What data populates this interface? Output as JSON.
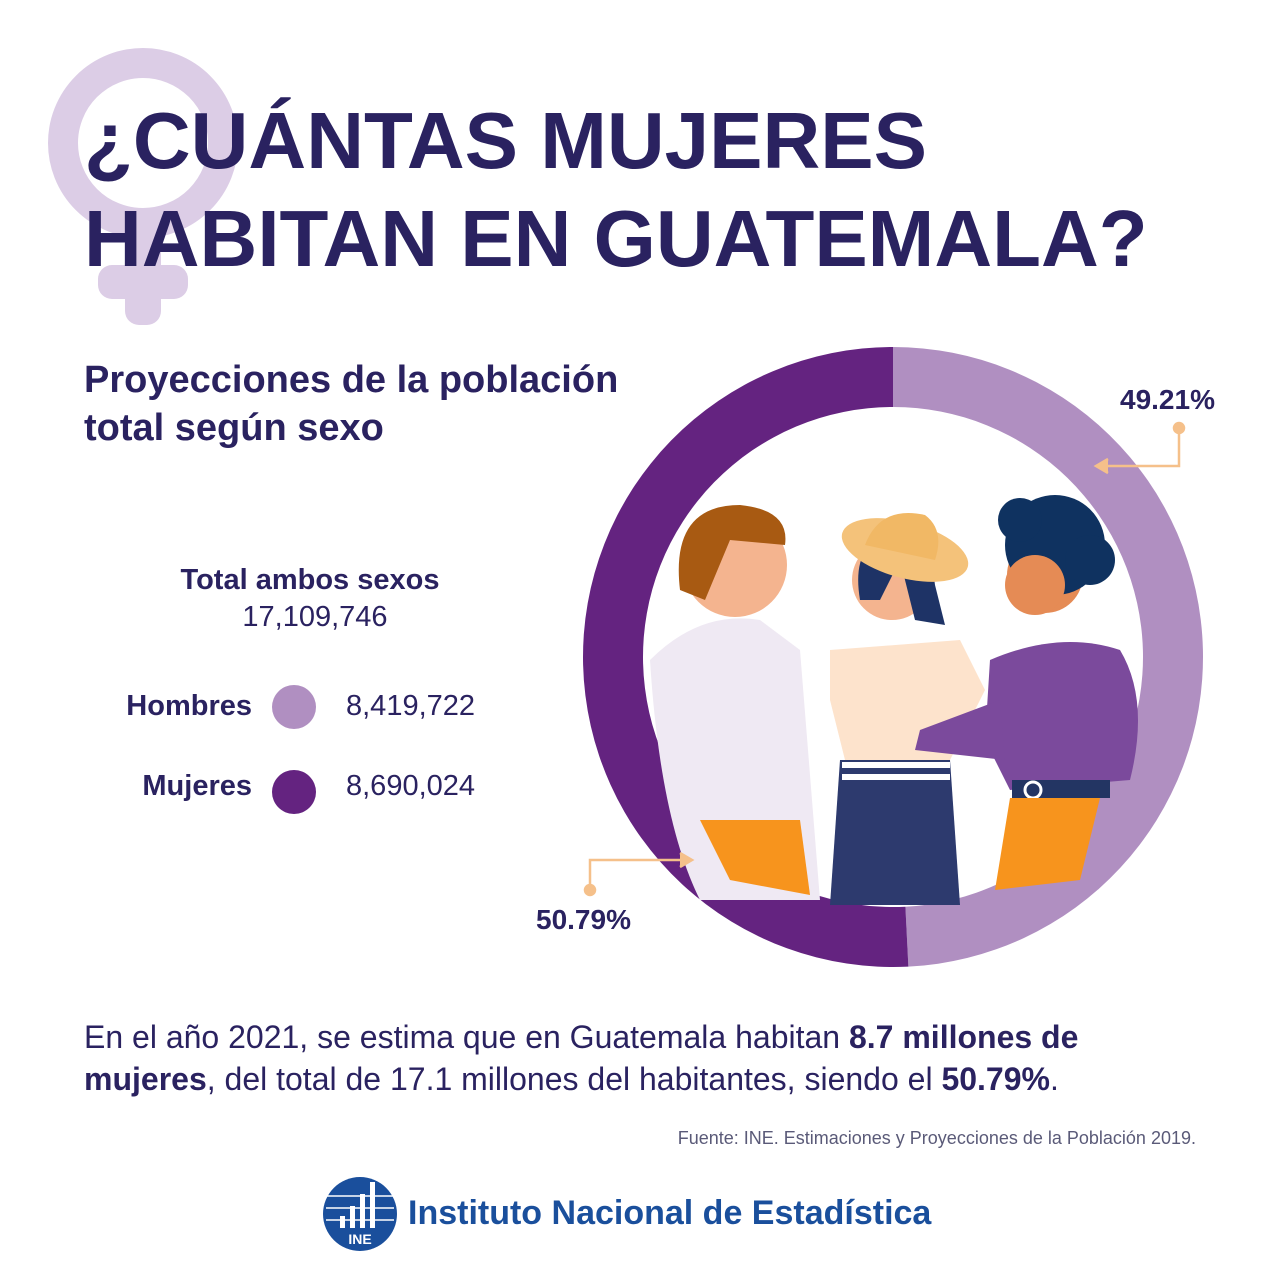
{
  "title": {
    "line1": "¿CUÁNTAS MUJERES",
    "line2": "HABITAN EN GUATEMALA?"
  },
  "subtitle": {
    "line1": "Proyecciones de la población",
    "line2": "total según sexo"
  },
  "total": {
    "label": "Total ambos sexos",
    "value": "17,109,746"
  },
  "legend": [
    {
      "label": "Hombres",
      "value": "8,419,722",
      "color": "#b08fc1"
    },
    {
      "label": "Mujeres",
      "value": "8,690,024",
      "color": "#642380"
    }
  ],
  "chart_data": {
    "type": "pie",
    "variant": "donut",
    "categories": [
      "Hombres",
      "Mujeres"
    ],
    "values": [
      49.21,
      50.79
    ],
    "data_labels": [
      "49.21%",
      "50.79%"
    ],
    "colors": [
      "#b08fc1",
      "#642380"
    ]
  },
  "description": {
    "part1": "En el año 2021, se estima que en Guatemala habitan ",
    "bold1": "8.7 millones de mujeres",
    "part2": ", del  total de 17.1 millones del habitantes, siendo  el ",
    "bold2": "50.79%",
    "part3": "."
  },
  "source": "Fuente: INE. Estimaciones y Proyecciones de la Población 2019.",
  "logo": {
    "abbr": "INE",
    "name": "Instituto Nacional de Estadística",
    "color": "#1a4f9c"
  },
  "icons": {
    "background": "female-symbol-icon",
    "logo": "ine-bar-chart-logo-icon"
  }
}
